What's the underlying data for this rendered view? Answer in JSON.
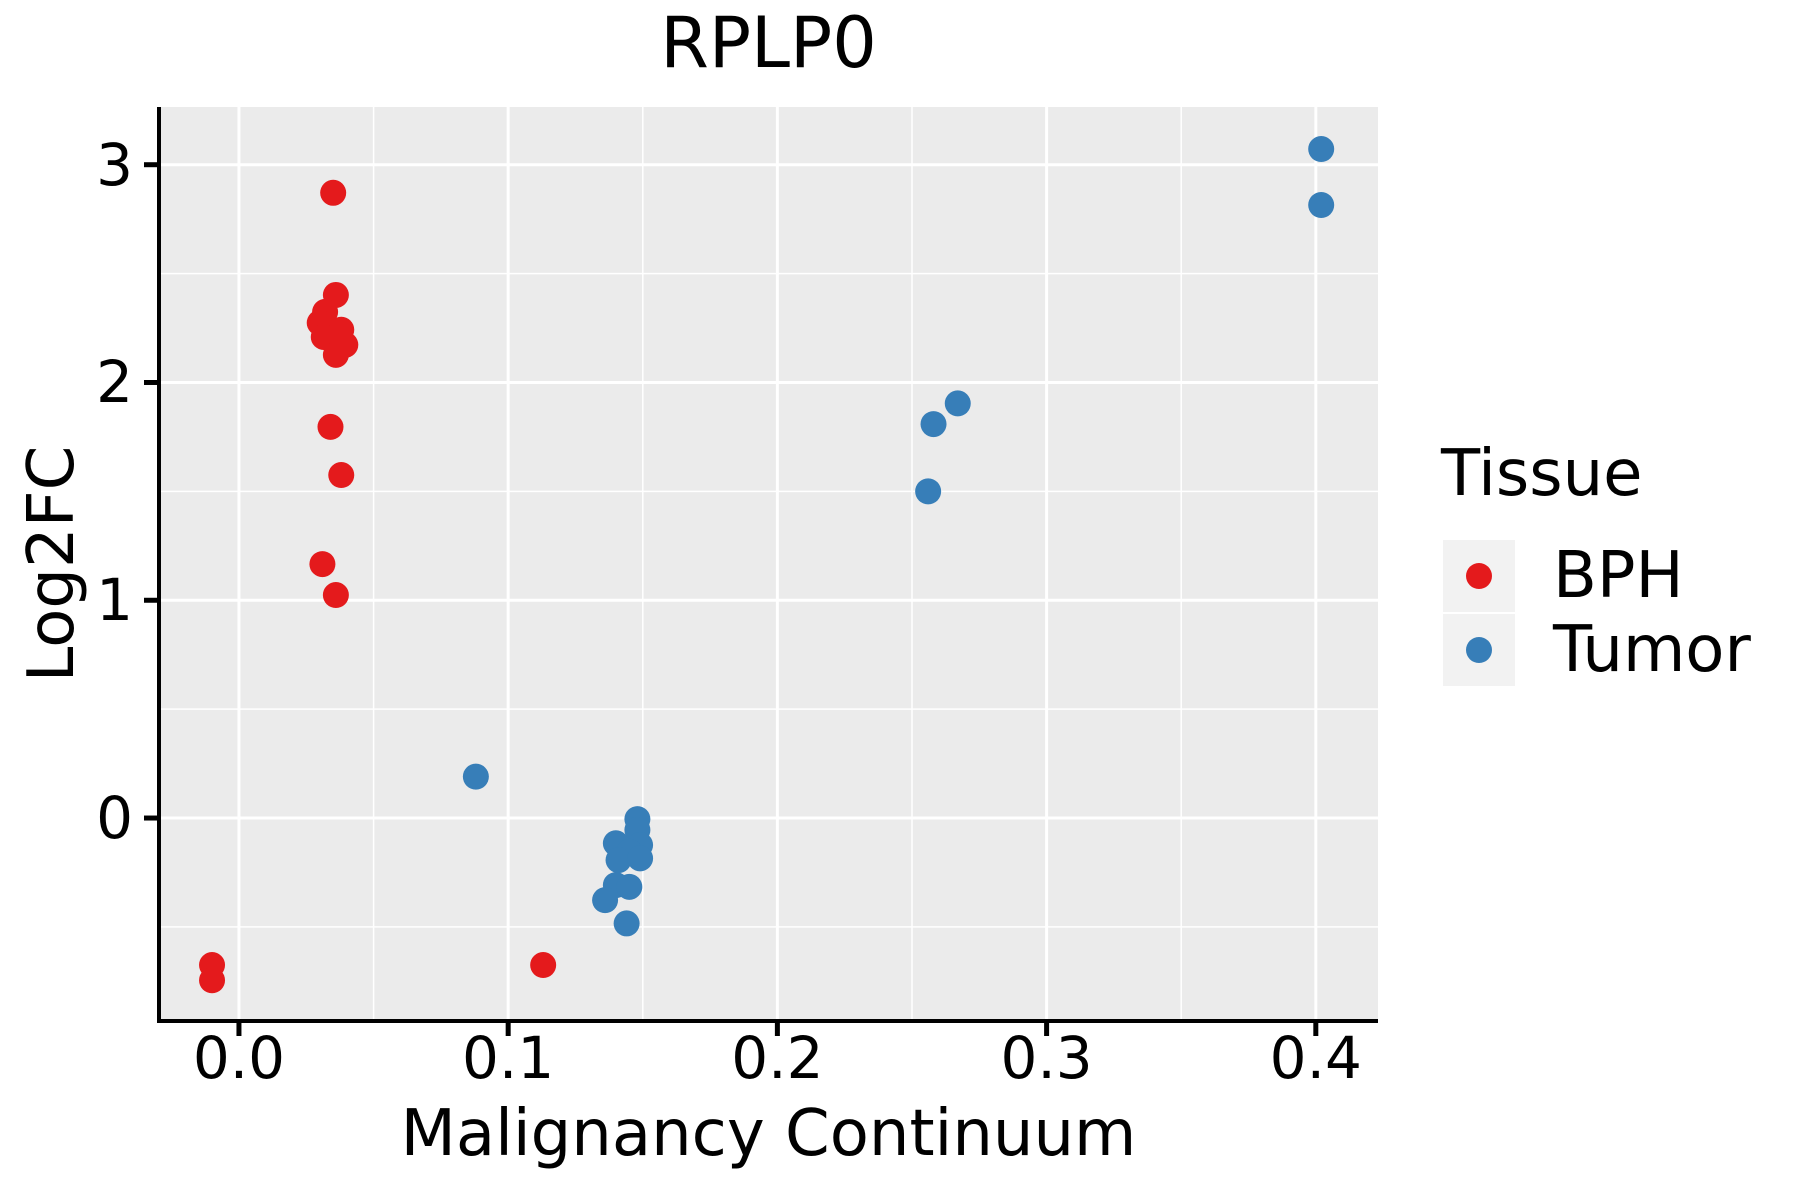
{
  "chart_data": {
    "type": "scatter",
    "title": "RPLP0",
    "xlabel": "Malignancy Continuum",
    "ylabel": "Log2FC",
    "xlim": [
      -0.0297,
      0.4231
    ],
    "ylim": [
      -0.932,
      3.265
    ],
    "x_major_ticks": [
      0.0,
      0.1,
      0.2,
      0.3,
      0.4
    ],
    "x_tick_labels": [
      "0.0",
      "0.1",
      "0.2",
      "0.3",
      "0.4"
    ],
    "x_minor_ticks": [
      0.05,
      0.15,
      0.25,
      0.35
    ],
    "y_major_ticks": [
      0,
      1,
      2,
      3
    ],
    "y_tick_labels": [
      "0",
      "1",
      "2",
      "3"
    ],
    "y_minor_ticks": [
      -0.5,
      0.5,
      1.5,
      2.5
    ],
    "grid": true,
    "legend": {
      "title": "Tissue",
      "position": "right"
    },
    "colors": {
      "panel_background": "#EBEBEB",
      "grid": "#FFFFFF",
      "axis": "#000000",
      "legend_key_background": "#F2F2F2"
    },
    "point_radius_px": 13,
    "series": [
      {
        "name": "BPH",
        "color": "#E41A1C",
        "points": [
          [
            -0.01,
            -0.675
          ],
          [
            -0.01,
            -0.745
          ],
          [
            0.035,
            2.871
          ],
          [
            0.036,
            2.402
          ],
          [
            0.032,
            2.324
          ],
          [
            0.03,
            2.274
          ],
          [
            0.038,
            2.242
          ],
          [
            0.0315,
            2.209
          ],
          [
            0.0395,
            2.173
          ],
          [
            0.036,
            2.127
          ],
          [
            0.034,
            1.796
          ],
          [
            0.038,
            1.575
          ],
          [
            0.031,
            1.166
          ],
          [
            0.036,
            1.024
          ],
          [
            0.113,
            -0.675
          ]
        ]
      },
      {
        "name": "Tumor",
        "color": "#377EB8",
        "points": [
          [
            0.088,
            0.19
          ],
          [
            0.148,
            -0.005
          ],
          [
            0.148,
            -0.055
          ],
          [
            0.14,
            -0.116
          ],
          [
            0.149,
            -0.124
          ],
          [
            0.145,
            -0.155
          ],
          [
            0.141,
            -0.193
          ],
          [
            0.149,
            -0.185
          ],
          [
            0.14,
            -0.308
          ],
          [
            0.145,
            -0.316
          ],
          [
            0.136,
            -0.377
          ],
          [
            0.144,
            -0.484
          ],
          [
            0.267,
            1.904
          ],
          [
            0.258,
            1.809
          ],
          [
            0.256,
            1.5
          ],
          [
            0.402,
            3.072
          ],
          [
            0.402,
            2.815
          ]
        ]
      }
    ]
  }
}
